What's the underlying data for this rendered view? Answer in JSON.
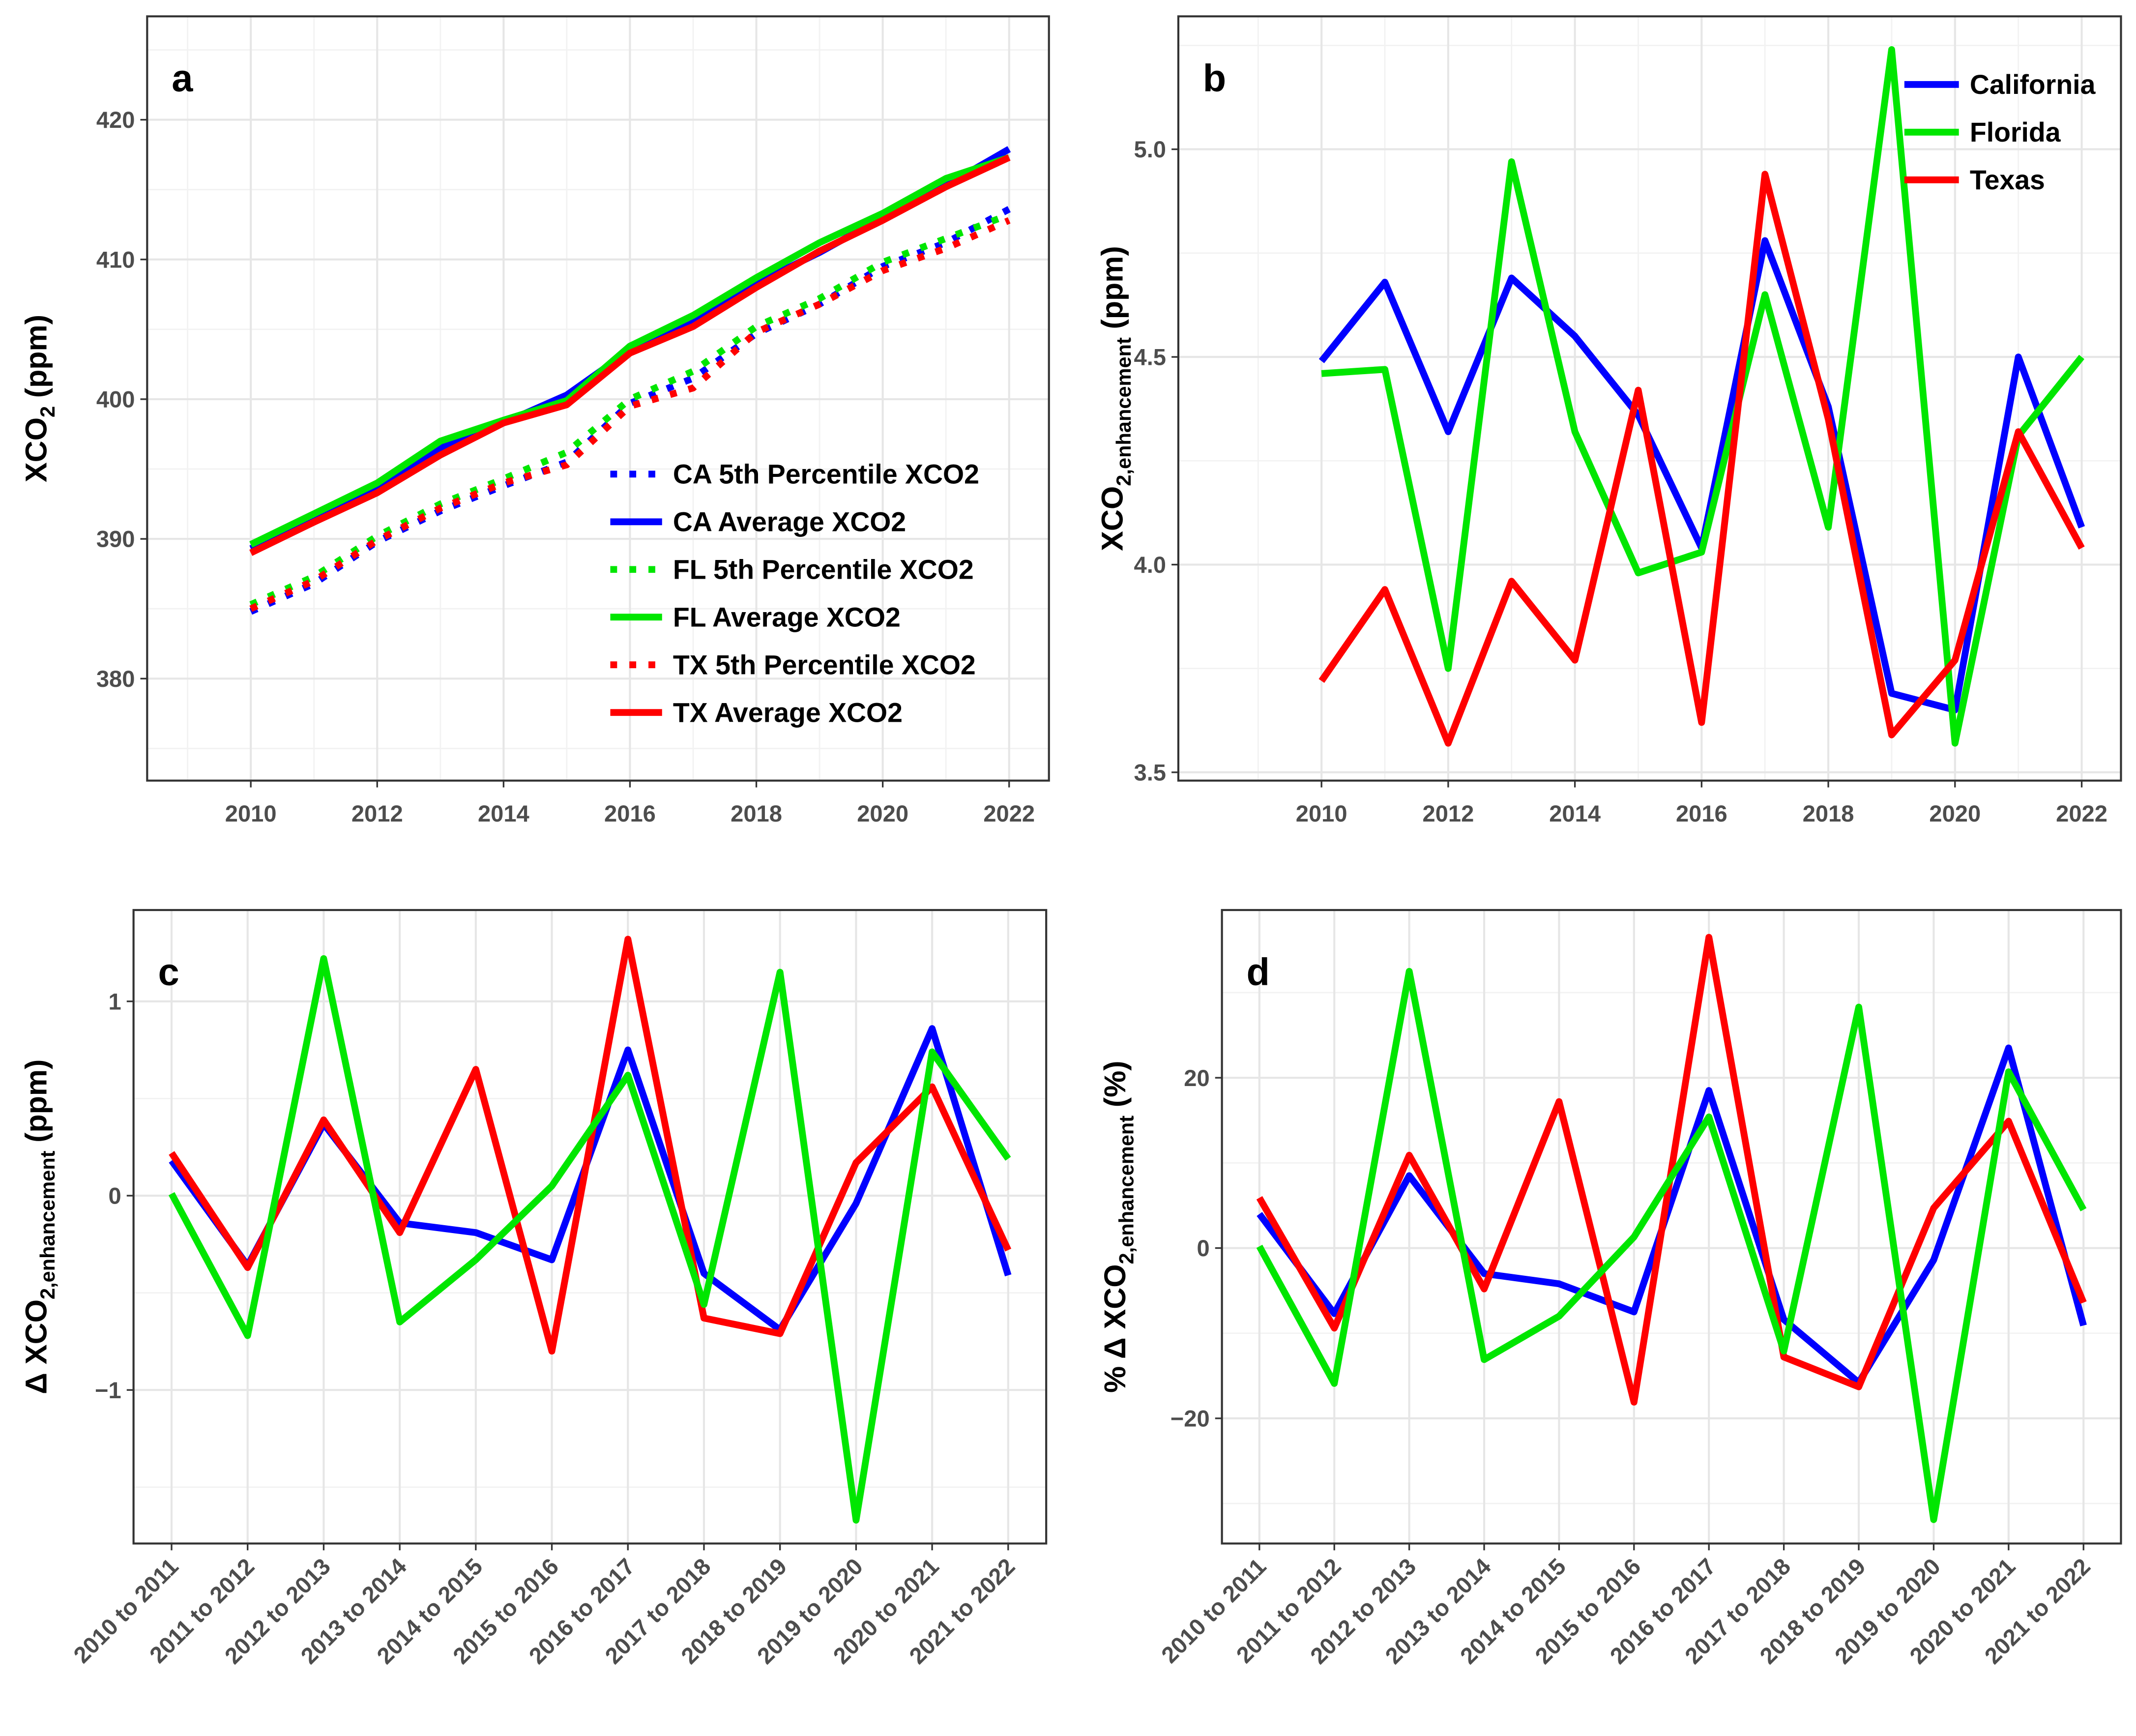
{
  "chart_data": [
    {
      "type": "line",
      "label": "a",
      "y_label": {
        "main": "XCO",
        "sub": "2",
        "unit": "(ppm)"
      },
      "x": [
        2010,
        2011,
        2012,
        2013,
        2014,
        2015,
        2016,
        2017,
        2018,
        2019,
        2020,
        2021,
        2022
      ],
      "xlim": [
        2008.36,
        2022.63
      ],
      "xticks": [
        2010,
        2012,
        2014,
        2016,
        2018,
        2020,
        2022
      ],
      "ylim": [
        372.7,
        427.4
      ],
      "yticks": [
        380,
        390,
        400,
        410,
        420
      ],
      "grid": true,
      "legend": "bottom-right",
      "series": [
        {
          "name": "CA 5th Percentile XCO2",
          "color": "#0000ff",
          "style": "dotted",
          "values": [
            384.8,
            386.8,
            389.8,
            392.0,
            393.8,
            395.5,
            399.7,
            401.5,
            404.7,
            406.8,
            409.5,
            411.2,
            413.6
          ]
        },
        {
          "name": "CA Average XCO2",
          "color": "#0000ff",
          "style": "solid",
          "values": [
            389.3,
            391.3,
            393.5,
            396.5,
            398.3,
            400.3,
            403.5,
            405.5,
            408.3,
            410.5,
            413.0,
            415.3,
            417.9
          ]
        },
        {
          "name": "FL 5th Percentile XCO2",
          "color": "#00e600",
          "style": "dotted",
          "values": [
            385.3,
            387.3,
            390.2,
            392.5,
            394.3,
            396.2,
            400.0,
            402.0,
            405.2,
            407.2,
            409.8,
            411.5,
            413.2
          ]
        },
        {
          "name": "FL Average XCO2",
          "color": "#00e600",
          "style": "solid",
          "values": [
            389.6,
            391.8,
            394.0,
            397.0,
            398.5,
            399.9,
            403.8,
            406.0,
            408.7,
            411.2,
            413.3,
            415.8,
            417.3
          ]
        },
        {
          "name": "TX 5th Percentile XCO2",
          "color": "#ff0000",
          "style": "dotted",
          "values": [
            385.0,
            387.0,
            389.9,
            392.2,
            394.0,
            395.3,
            399.5,
            400.8,
            404.8,
            406.8,
            409.2,
            410.8,
            412.8
          ]
        },
        {
          "name": "TX Average XCO2",
          "color": "#ff0000",
          "style": "solid",
          "values": [
            389.0,
            391.2,
            393.3,
            396.0,
            398.3,
            399.6,
            403.3,
            405.2,
            408.0,
            410.6,
            412.8,
            415.2,
            417.3
          ]
        }
      ]
    },
    {
      "type": "line",
      "label": "b",
      "y_label": {
        "main": "XCO",
        "sub": "2,enhancement",
        "unit": "(ppm)"
      },
      "x": [
        2010,
        2011,
        2012,
        2013,
        2014,
        2015,
        2016,
        2017,
        2018,
        2019,
        2020,
        2021,
        2022
      ],
      "xlim": [
        2007.74,
        2022.62
      ],
      "xticks": [
        2010,
        2012,
        2014,
        2016,
        2018,
        2020,
        2022
      ],
      "ylim": [
        3.48,
        5.32
      ],
      "yticks": [
        3.5,
        {
          "value": 4,
          "label": "4.0"
        },
        4.5,
        {
          "value": 5,
          "label": "5.0"
        }
      ],
      "grid": true,
      "legend": "top-right",
      "series": [
        {
          "name": "California",
          "color": "#0000ff",
          "style": "solid",
          "values": [
            4.49,
            4.68,
            4.32,
            4.69,
            4.55,
            4.36,
            4.04,
            4.78,
            4.38,
            3.69,
            3.65,
            4.5,
            4.09
          ]
        },
        {
          "name": "Florida",
          "color": "#00e600",
          "style": "solid",
          "values": [
            4.46,
            4.47,
            3.75,
            4.97,
            4.32,
            3.98,
            4.03,
            4.65,
            4.09,
            5.24,
            3.57,
            4.31,
            4.5
          ]
        },
        {
          "name": "Texas",
          "color": "#ff0000",
          "style": "solid",
          "values": [
            3.72,
            3.94,
            3.57,
            3.96,
            3.77,
            4.42,
            3.62,
            4.94,
            4.35,
            3.59,
            3.77,
            4.32,
            4.04
          ]
        }
      ]
    },
    {
      "type": "line",
      "label": "c",
      "y_label": {
        "main": "Δ XCO",
        "sub": "2,enhancement",
        "unit": "(ppm)"
      },
      "categories": [
        "2010 to 2011",
        "2011 to 2012",
        "2012 to 2013",
        "2013 to 2014",
        "2014 to 2015",
        "2015 to 2016",
        "2016 to 2017",
        "2017 to 2018",
        "2018 to 2019",
        "2019 to 2020",
        "2020 to 2021",
        "2021 to 2022"
      ],
      "ylim": [
        -1.79,
        1.47
      ],
      "yticks": [
        {
          "value": -1,
          "label": "−1"
        },
        0,
        1
      ],
      "grid": true,
      "series": [
        {
          "color": "#0000ff",
          "style": "solid",
          "values": [
            0.18,
            -0.36,
            0.37,
            -0.14,
            -0.19,
            -0.33,
            0.75,
            -0.4,
            -0.69,
            -0.04,
            0.86,
            -0.41
          ]
        },
        {
          "color": "#ff0000",
          "style": "solid",
          "values": [
            0.22,
            -0.37,
            0.39,
            -0.19,
            0.65,
            -0.8,
            1.32,
            -0.63,
            -0.71,
            0.17,
            0.56,
            -0.28
          ]
        },
        {
          "color": "#00e600",
          "style": "solid",
          "values": [
            0.01,
            -0.72,
            1.22,
            -0.65,
            -0.33,
            0.05,
            0.62,
            -0.56,
            1.15,
            -1.67,
            0.74,
            0.19
          ]
        }
      ]
    },
    {
      "type": "line",
      "label": "d",
      "y_label": {
        "main": "% Δ XCO",
        "sub": "2,enhancement",
        "unit": "(%)"
      },
      "categories": [
        "2010 to 2011",
        "2011 to 2012",
        "2012 to 2013",
        "2013 to 2014",
        "2014 to 2015",
        "2015 to 2016",
        "2016 to 2017",
        "2017 to 2018",
        "2018 to 2019",
        "2019 to 2020",
        "2020 to 2021",
        "2021 to 2022"
      ],
      "ylim": [
        -34.7,
        39.7
      ],
      "yticks": [
        {
          "value": -20,
          "label": "−20"
        },
        0,
        20
      ],
      "grid": true,
      "series": [
        {
          "color": "#0000ff",
          "style": "solid",
          "values": [
            4.0,
            -7.7,
            8.5,
            -3.0,
            -4.2,
            -7.5,
            18.5,
            -8.4,
            -15.8,
            -1.4,
            23.5,
            -9.1
          ]
        },
        {
          "color": "#ff0000",
          "style": "solid",
          "values": [
            5.9,
            -9.4,
            10.9,
            -4.8,
            17.2,
            -18.1,
            36.5,
            -12.8,
            -16.3,
            4.7,
            14.9,
            -6.4
          ]
        },
        {
          "color": "#00e600",
          "style": "solid",
          "values": [
            0.2,
            -15.9,
            32.5,
            -13.1,
            -8.0,
            1.3,
            15.4,
            -12.1,
            28.3,
            -31.9,
            20.7,
            4.5
          ]
        }
      ]
    }
  ]
}
